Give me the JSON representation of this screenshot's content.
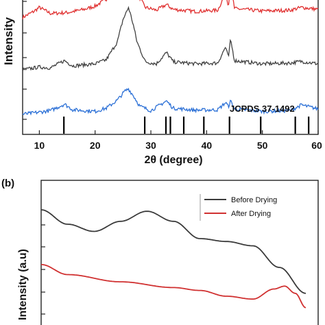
{
  "chart_data": [
    {
      "type": "line",
      "xlabel": "2θ (degree)",
      "ylabel": "Intensity",
      "xlim": [
        7,
        60
      ],
      "x_ticks": [
        "10",
        "20",
        "30",
        "40",
        "50",
        "60"
      ],
      "x_tick_values": [
        10,
        20,
        30,
        40,
        50,
        60
      ],
      "grid": false,
      "series": [
        {
          "color": "#e03030",
          "offset": 2.6,
          "points": [
            [
              7,
              0.3
            ],
            [
              9,
              0.45
            ],
            [
              10,
              0.55
            ],
            [
              12,
              0.4
            ],
            [
              15,
              0.42
            ],
            [
              18,
              0.5
            ],
            [
              20,
              0.58
            ],
            [
              22,
              0.75
            ],
            [
              24,
              1.2
            ],
            [
              25,
              1.9
            ],
            [
              26,
              2.4
            ],
            [
              26.6,
              1.8
            ],
            [
              27.5,
              0.9
            ],
            [
              29,
              0.55
            ],
            [
              31,
              0.48
            ],
            [
              32.8,
              0.62
            ],
            [
              34,
              0.5
            ],
            [
              38,
              0.45
            ],
            [
              42,
              0.48
            ],
            [
              43.4,
              0.9
            ],
            [
              43.9,
              0.6
            ],
            [
              44.3,
              1.1
            ],
            [
              45,
              0.52
            ],
            [
              50,
              0.46
            ],
            [
              55,
              0.48
            ],
            [
              57,
              0.55
            ],
            [
              60,
              0.5
            ]
          ]
        },
        {
          "color": "#404040",
          "offset": 1.45,
          "points": [
            [
              7,
              0.15
            ],
            [
              10,
              0.22
            ],
            [
              12,
              0.2
            ],
            [
              14.5,
              0.38
            ],
            [
              16,
              0.25
            ],
            [
              20,
              0.3
            ],
            [
              22,
              0.4
            ],
            [
              24,
              0.85
            ],
            [
              25,
              1.4
            ],
            [
              26,
              1.7
            ],
            [
              26.8,
              1.3
            ],
            [
              27.5,
              0.85
            ],
            [
              29,
              0.35
            ],
            [
              31,
              0.3
            ],
            [
              32.8,
              0.58
            ],
            [
              34,
              0.35
            ],
            [
              38,
              0.3
            ],
            [
              42,
              0.32
            ],
            [
              43.4,
              0.72
            ],
            [
              43.9,
              0.45
            ],
            [
              44.3,
              0.9
            ],
            [
              45,
              0.38
            ],
            [
              50,
              0.3
            ],
            [
              55,
              0.32
            ],
            [
              57,
              0.36
            ],
            [
              60,
              0.3
            ]
          ]
        },
        {
          "color": "#2a6fd6",
          "offset": 0.45,
          "points": [
            [
              7,
              0.05
            ],
            [
              10,
              0.1
            ],
            [
              12,
              0.14
            ],
            [
              14.5,
              0.3
            ],
            [
              16,
              0.16
            ],
            [
              20,
              0.12
            ],
            [
              22,
              0.2
            ],
            [
              24,
              0.4
            ],
            [
              25.3,
              0.62
            ],
            [
              26,
              0.68
            ],
            [
              27,
              0.48
            ],
            [
              28,
              0.25
            ],
            [
              30,
              0.14
            ],
            [
              32.8,
              0.38
            ],
            [
              34,
              0.2
            ],
            [
              38,
              0.15
            ],
            [
              42,
              0.16
            ],
            [
              43.4,
              0.34
            ],
            [
              43.9,
              0.24
            ],
            [
              44.3,
              0.38
            ],
            [
              45,
              0.18
            ],
            [
              50,
              0.12
            ],
            [
              55,
              0.14
            ],
            [
              57,
              0.28
            ],
            [
              60,
              0.18
            ]
          ]
        }
      ],
      "reference_label": "JCPDS 37-1492",
      "reference_peaks": [
        14.4,
        28.9,
        32.7,
        33.5,
        35.9,
        39.5,
        44.1,
        49.7,
        55.9,
        58.3
      ]
    },
    {
      "type": "line",
      "panel_label": "(b)",
      "ylabel": "Intensity (a.u)",
      "grid": false,
      "series": [
        {
          "name": "Before Drying",
          "color": "#3a3a3a",
          "points": [
            [
              0,
              0.8
            ],
            [
              0.1,
              0.7
            ],
            [
              0.2,
              0.65
            ],
            [
              0.3,
              0.72
            ],
            [
              0.4,
              0.79
            ],
            [
              0.5,
              0.72
            ],
            [
              0.6,
              0.6
            ],
            [
              0.7,
              0.58
            ],
            [
              0.8,
              0.55
            ],
            [
              0.9,
              0.4
            ],
            [
              1.0,
              0.22
            ]
          ]
        },
        {
          "name": "After Drying",
          "color": "#d03030",
          "points": [
            [
              0,
              0.42
            ],
            [
              0.1,
              0.35
            ],
            [
              0.3,
              0.3
            ],
            [
              0.5,
              0.26
            ],
            [
              0.6,
              0.24
            ],
            [
              0.7,
              0.2
            ],
            [
              0.8,
              0.18
            ],
            [
              0.88,
              0.25
            ],
            [
              0.92,
              0.27
            ],
            [
              0.96,
              0.22
            ],
            [
              1.0,
              0.12
            ]
          ]
        }
      ]
    }
  ]
}
